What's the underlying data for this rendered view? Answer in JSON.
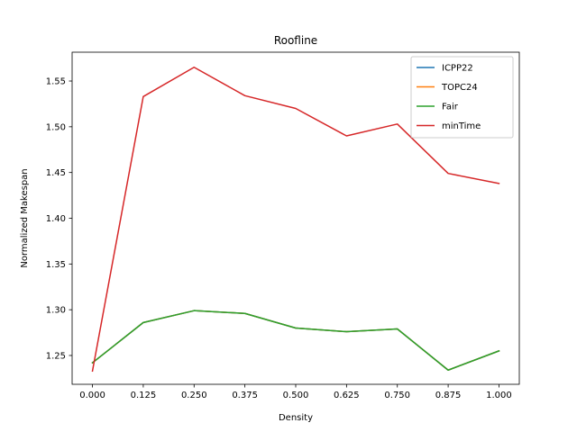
{
  "chart_data": {
    "type": "line",
    "title": "Roofline",
    "xlabel": "Density",
    "ylabel": "Normalized Makespan",
    "x": [
      0.0,
      0.125,
      0.25,
      0.375,
      0.5,
      0.625,
      0.75,
      0.875,
      1.0
    ],
    "x_tick_labels": [
      "0.000",
      "0.125",
      "0.250",
      "0.375",
      "0.500",
      "0.625",
      "0.750",
      "0.875",
      "1.000"
    ],
    "y_ticks": [
      1.25,
      1.3,
      1.35,
      1.4,
      1.45,
      1.5,
      1.55
    ],
    "y_tick_labels": [
      "1.25",
      "1.30",
      "1.35",
      "1.40",
      "1.45",
      "1.50",
      "1.55"
    ],
    "xlim": [
      -0.05,
      1.05
    ],
    "ylim": [
      1.2185,
      1.5815
    ],
    "grid": false,
    "legend_position": "top-right",
    "series": [
      {
        "name": "ICPP22",
        "color": "#1f77b4",
        "values": [
          1.242,
          1.286,
          1.299,
          1.296,
          1.28,
          1.276,
          1.279,
          1.234,
          1.255
        ]
      },
      {
        "name": "TOPC24",
        "color": "#ff7f0e",
        "values": [
          1.242,
          1.286,
          1.299,
          1.296,
          1.28,
          1.276,
          1.279,
          1.234,
          1.255
        ]
      },
      {
        "name": "Fair",
        "color": "#2ca02c",
        "values": [
          1.242,
          1.286,
          1.299,
          1.296,
          1.28,
          1.276,
          1.279,
          1.234,
          1.255
        ]
      },
      {
        "name": "minTime",
        "color": "#d62728",
        "values": [
          1.233,
          1.533,
          1.565,
          1.534,
          1.52,
          1.49,
          1.503,
          1.449,
          1.438
        ]
      }
    ]
  }
}
